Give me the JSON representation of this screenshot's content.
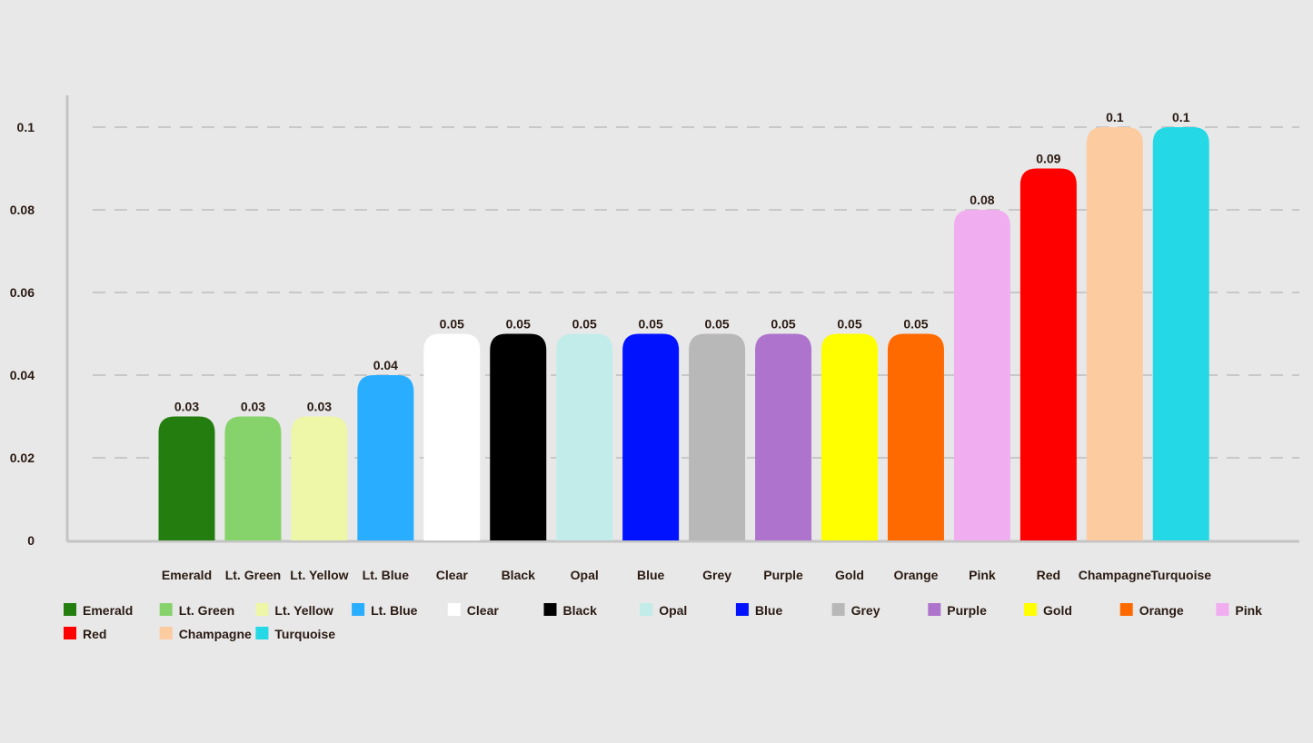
{
  "chart_data": {
    "type": "bar",
    "categories": [
      "Emerald",
      "Lt. Green",
      "Lt. Yellow",
      "Lt. Blue",
      "Clear",
      "Black",
      "Opal",
      "Blue",
      "Grey",
      "Purple",
      "Gold",
      "Orange",
      "Pink",
      "Red",
      "Champagne",
      "Turquoise"
    ],
    "values": [
      0.03,
      0.03,
      0.03,
      0.04,
      0.05,
      0.05,
      0.05,
      0.05,
      0.05,
      0.05,
      0.05,
      0.05,
      0.08,
      0.09,
      0.1,
      0.1
    ],
    "value_labels": [
      "0.03",
      "0.03",
      "0.03",
      "0.04",
      "0.05",
      "0.05",
      "0.05",
      "0.05",
      "0.05",
      "0.05",
      "0.05",
      "0.05",
      "0.08",
      "0.09",
      "0.1",
      "0.1"
    ],
    "colors": [
      "#237e0f",
      "#87d36b",
      "#eef6a8",
      "#29adff",
      "#ffffff",
      "#000000",
      "#c2ece9",
      "#0012ff",
      "#b8b8b8",
      "#ae73cc",
      "#ffff00",
      "#ff6a00",
      "#f0aef0",
      "#ff0000",
      "#fdcba0",
      "#24d9e5"
    ],
    "y_ticks": [
      "0",
      "0.02",
      "0.04",
      "0.06",
      "0.08",
      "0.1"
    ],
    "ylim": [
      0,
      0.1
    ],
    "grid": true,
    "legend_position": "bottom",
    "title": "",
    "xlabel": "",
    "ylabel": ""
  },
  "colors": {
    "background": "#e8e8e8",
    "axis": "#c4c4c4",
    "grid": "#c8c8c8",
    "text": "#2a1a12"
  }
}
